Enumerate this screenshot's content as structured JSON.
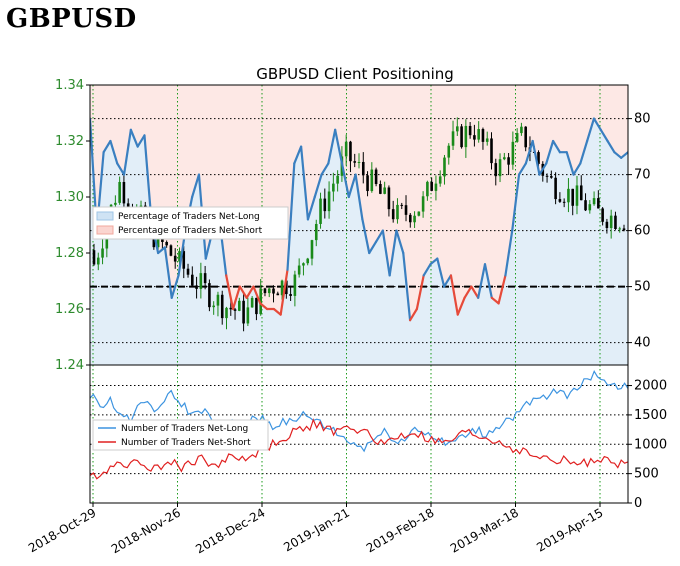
{
  "page": {
    "title": "GBPUSD"
  },
  "chart_data": {
    "title": "GBPUSD Client Positioning",
    "x_ticks": [
      "2018-Oct-29",
      "2018-Nov-26",
      "2018-Dec-24",
      "2019-Jan-21",
      "2019-Feb-18",
      "2019-Mar-18",
      "2019-Apr-15"
    ],
    "top_panel": {
      "type": "candlestick+line",
      "left_axis": {
        "ylim": [
          1.24,
          1.34
        ],
        "ticks": [
          "1.24",
          "1.26",
          "1.28",
          "1.30",
          "1.32",
          "1.34"
        ]
      },
      "right_axis": {
        "ylim": [
          36,
          86
        ],
        "ticks": [
          "40",
          "50",
          "60",
          "70",
          "80"
        ]
      },
      "reference_line": 50,
      "legend": {
        "placement": "upper-left",
        "entries": [
          "Percentage of Traders Net-Long",
          "Percentage of Traders Net-Short"
        ]
      },
      "colors": {
        "net_long": "#3a7fc0",
        "net_short": "#e64a3a",
        "long_fill": "#cfe3f4",
        "short_fill": "#fbd5d0",
        "candle_up": "#1a8a1a",
        "candle_down": "#000000"
      },
      "candles_weekly_approx": [
        {
          "o": 1.281,
          "h": 1.292,
          "l": 1.27,
          "c": 1.276
        },
        {
          "o": 1.276,
          "h": 1.312,
          "l": 1.273,
          "c": 1.305
        },
        {
          "o": 1.305,
          "h": 1.315,
          "l": 1.283,
          "c": 1.29
        },
        {
          "o": 1.29,
          "h": 1.298,
          "l": 1.273,
          "c": 1.28
        },
        {
          "o": 1.28,
          "h": 1.29,
          "l": 1.263,
          "c": 1.27
        },
        {
          "o": 1.27,
          "h": 1.28,
          "l": 1.255,
          "c": 1.262
        },
        {
          "o": 1.262,
          "h": 1.276,
          "l": 1.248,
          "c": 1.258
        },
        {
          "o": 1.258,
          "h": 1.272,
          "l": 1.246,
          "c": 1.268
        },
        {
          "o": 1.268,
          "h": 1.288,
          "l": 1.244,
          "c": 1.27
        },
        {
          "o": 1.27,
          "h": 1.3,
          "l": 1.266,
          "c": 1.296
        },
        {
          "o": 1.296,
          "h": 1.32,
          "l": 1.292,
          "c": 1.315
        },
        {
          "o": 1.315,
          "h": 1.326,
          "l": 1.3,
          "c": 1.305
        },
        {
          "o": 1.305,
          "h": 1.312,
          "l": 1.286,
          "c": 1.293
        },
        {
          "o": 1.293,
          "h": 1.3,
          "l": 1.282,
          "c": 1.297
        },
        {
          "o": 1.297,
          "h": 1.322,
          "l": 1.294,
          "c": 1.318
        },
        {
          "o": 1.318,
          "h": 1.335,
          "l": 1.31,
          "c": 1.325
        },
        {
          "o": 1.325,
          "h": 1.332,
          "l": 1.3,
          "c": 1.31
        },
        {
          "o": 1.31,
          "h": 1.338,
          "l": 1.305,
          "c": 1.322
        },
        {
          "o": 1.322,
          "h": 1.33,
          "l": 1.3,
          "c": 1.306
        },
        {
          "o": 1.306,
          "h": 1.312,
          "l": 1.296,
          "c": 1.3
        },
        {
          "o": 1.3,
          "h": 1.306,
          "l": 1.29,
          "c": 1.294
        },
        {
          "o": 1.294,
          "h": 1.3,
          "l": 1.286,
          "c": 1.292
        }
      ],
      "net_long_pct_weekly_approx": [
        80,
        60,
        74,
        76,
        72,
        70,
        78,
        75,
        77,
        62,
        56,
        57,
        48,
        52,
        60,
        66,
        70,
        55,
        60,
        62,
        52,
        46,
        50,
        48,
        50,
        47,
        46,
        46,
        45,
        53,
        72,
        75,
        62,
        66,
        70,
        72,
        78,
        72,
        66,
        70,
        62,
        56,
        58,
        60,
        52,
        60,
        56,
        44,
        46,
        52,
        54,
        55,
        50,
        52,
        45,
        48,
        50,
        48,
        54,
        48,
        47,
        52,
        60,
        70,
        72,
        76,
        70,
        72,
        76,
        74,
        74,
        70,
        72,
        76,
        80,
        78,
        76,
        74,
        73,
        74
      ]
    },
    "bottom_panel": {
      "type": "line",
      "right_axis": {
        "ylim": [
          0,
          2350
        ],
        "ticks": [
          "0",
          "500",
          "1000",
          "1500",
          "2000"
        ]
      },
      "legend": {
        "placement": "center-left",
        "entries": [
          "Number of Traders Net-Long",
          "Number of Traders Net-Short"
        ]
      },
      "colors": {
        "net_long": "#3d94e0",
        "net_short": "#e02020"
      },
      "net_long_traders_approx": [
        1850,
        1650,
        1750,
        1500,
        1400,
        1750,
        1600,
        1650,
        1850,
        1700,
        1500,
        1600,
        1400,
        1300,
        1350,
        1350,
        1400,
        1450,
        1300,
        1400,
        1350,
        1500,
        1450,
        1300,
        1250,
        1100,
        1000,
        950,
        1100,
        1200,
        1100,
        1050,
        1300,
        1200,
        1100,
        1000,
        1050,
        1150,
        1250,
        1150,
        1300,
        1400,
        1500,
        1650,
        1750,
        1800,
        1900,
        1850,
        2000,
        2100,
        2200,
        2050,
        2000,
        1950
      ],
      "net_short_traders_approx": [
        450,
        500,
        600,
        700,
        650,
        700,
        600,
        650,
        700,
        600,
        700,
        750,
        650,
        700,
        800,
        750,
        800,
        900,
        1000,
        1100,
        1200,
        1250,
        1350,
        1300,
        1200,
        1250,
        1300,
        1200,
        1100,
        1000,
        1100,
        1150,
        1200,
        1100,
        1050,
        1000,
        1100,
        1200,
        1150,
        1100,
        1050,
        1000,
        900,
        850,
        800,
        750,
        700,
        750,
        650,
        700,
        750,
        700,
        650,
        700
      ]
    }
  }
}
